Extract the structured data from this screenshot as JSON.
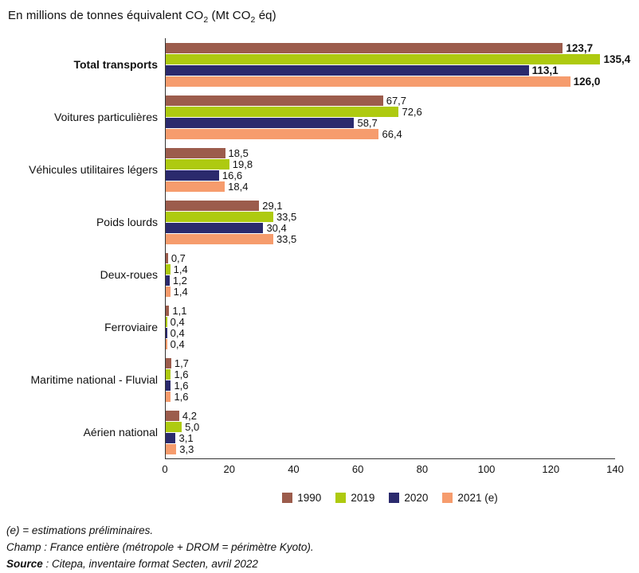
{
  "title": {
    "part1": "En millions de tonnes équivalent CO",
    "sub1": "2",
    "part2": " (Mt CO",
    "sub2": "2",
    "part3": " éq)"
  },
  "chart_data": {
    "type": "bar",
    "orientation": "horizontal",
    "categories": [
      "Total transports",
      "Voitures particulières",
      "Véhicules utilitaires légers",
      "Poids lourds",
      "Deux-roues",
      "Ferroviaire",
      "Maritime national - Fluvial",
      "Aérien national"
    ],
    "bold_category": "Total transports",
    "series": [
      {
        "name": "1990",
        "color": "#9c5c4c",
        "values": [
          123.7,
          67.7,
          18.5,
          29.1,
          0.7,
          1.1,
          1.7,
          4.2
        ]
      },
      {
        "name": "2019",
        "color": "#aeca10",
        "values": [
          135.4,
          72.6,
          19.8,
          33.5,
          1.4,
          0.4,
          1.6,
          5.0
        ]
      },
      {
        "name": "2020",
        "color": "#2b2a6d",
        "values": [
          113.1,
          58.7,
          16.6,
          30.4,
          1.2,
          0.4,
          1.6,
          3.1
        ]
      },
      {
        "name": "2021 (e)",
        "color": "#f69c6d",
        "values": [
          126.0,
          66.4,
          18.4,
          33.5,
          1.4,
          0.4,
          1.6,
          3.3
        ]
      }
    ],
    "labels": [
      [
        "123,7",
        "135,4",
        "113,1",
        "126,0"
      ],
      [
        "67,7",
        "72,6",
        "58,7",
        "66,4"
      ],
      [
        "18,5",
        "19,8",
        "16,6",
        "18,4"
      ],
      [
        "29,1",
        "33,5",
        "30,4",
        "33,5"
      ],
      [
        "0,7",
        "1,4",
        "1,2",
        "1,4"
      ],
      [
        "1,1",
        "0,4",
        "0,4",
        "0,4"
      ],
      [
        "1,7",
        "1,6",
        "1,6",
        "1,6"
      ],
      [
        "4,2",
        "5,0",
        "3,1",
        "3,3"
      ]
    ],
    "xlim": [
      0,
      140
    ],
    "xticks": [
      0,
      20,
      40,
      60,
      80,
      100,
      120,
      140
    ],
    "grid": false,
    "legend_position": "bottom"
  },
  "footnotes": {
    "line1": "(e) = estimations préliminaires.",
    "line2": "Champ : France entière (métropole + DROM = périmètre Kyoto).",
    "source_label": "Source",
    "source_rest": " : Citepa, inventaire format Secten, avril 2022"
  }
}
